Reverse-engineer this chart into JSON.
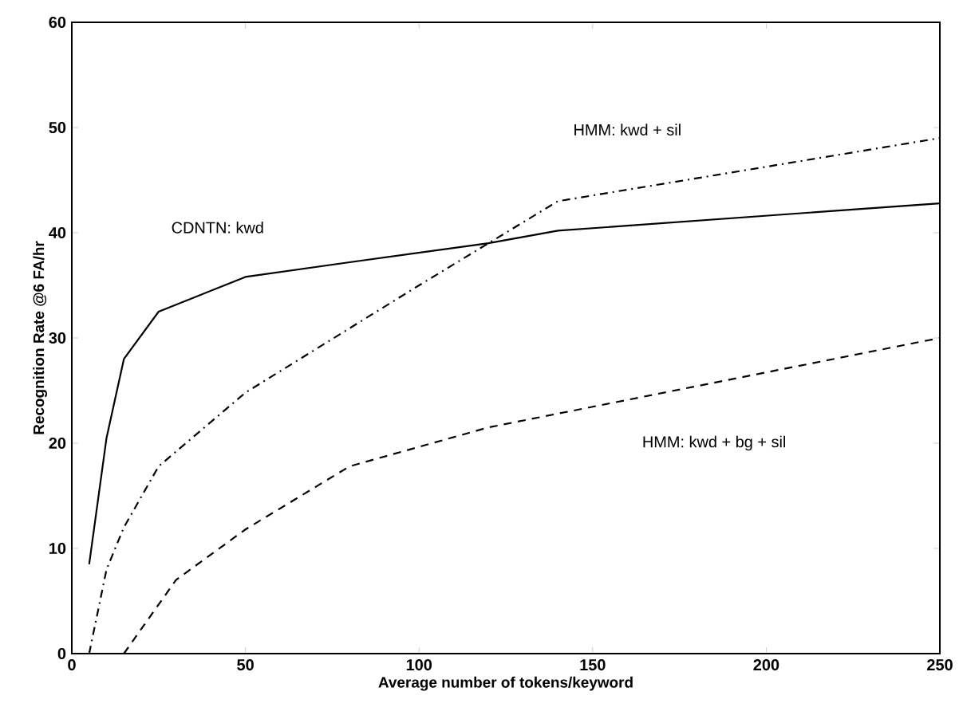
{
  "chart_data": {
    "type": "line",
    "xlabel": "Average number of tokens/keyword",
    "ylabel": "Recognition Rate @6 FA/hr",
    "xlim": [
      0,
      250
    ],
    "ylim": [
      0,
      60
    ],
    "xticks": [
      0,
      50,
      100,
      150,
      200,
      250
    ],
    "yticks": [
      0,
      10,
      20,
      30,
      40,
      50,
      60
    ],
    "grid": false,
    "legend": false,
    "marker": "none",
    "series": [
      {
        "name": "CDNTN: kwd",
        "color": "#000000",
        "line_style": "solid",
        "x": [
          5,
          10,
          15,
          25,
          50,
          80,
          120,
          140,
          250
        ],
        "values": [
          8.5,
          20.5,
          28,
          32.5,
          35.8,
          37.2,
          39,
          40.2,
          42.8
        ]
      },
      {
        "name": "HMM: kwd + sil",
        "color": "#000000",
        "line_style": "dashdot",
        "x": [
          5,
          10,
          15,
          25,
          50,
          100,
          140,
          250
        ],
        "values": [
          0,
          8,
          12,
          17.8,
          24.8,
          35,
          43,
          49
        ]
      },
      {
        "name": "HMM: kwd + bg + sil",
        "color": "#000000",
        "line_style": "dashed",
        "x": [
          15,
          30,
          50,
          80,
          120,
          250
        ],
        "values": [
          0,
          7,
          11.8,
          17.8,
          21.5,
          30
        ]
      }
    ]
  }
}
